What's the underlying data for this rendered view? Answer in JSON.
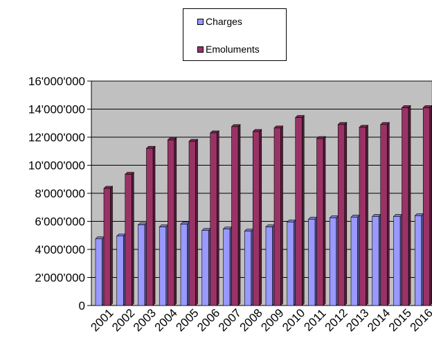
{
  "chart_data": {
    "type": "bar",
    "categories": [
      "2001",
      "2002",
      "2003",
      "2004",
      "2005",
      "2006",
      "2007",
      "2008",
      "2009",
      "2010",
      "2011",
      "2012",
      "2013",
      "2014",
      "2015",
      "2016"
    ],
    "series": [
      {
        "name": "Charges",
        "color": "#9999ff",
        "values": [
          4750000,
          4950000,
          5750000,
          5600000,
          5800000,
          5350000,
          5450000,
          5300000,
          5600000,
          5950000,
          6150000,
          6250000,
          6300000,
          6350000,
          6350000,
          6400000
        ]
      },
      {
        "name": "Emoluments",
        "color": "#993366",
        "values": [
          8350000,
          9350000,
          11200000,
          11800000,
          11700000,
          12300000,
          12750000,
          12400000,
          12650000,
          13400000,
          11900000,
          12900000,
          12700000,
          12900000,
          14100000,
          14100000
        ]
      }
    ],
    "ylim": [
      0,
      16000000
    ],
    "yticks": [
      0,
      2000000,
      4000000,
      6000000,
      8000000,
      10000000,
      12000000,
      14000000,
      16000000
    ],
    "ytick_labels": [
      "0",
      "2'000'000",
      "4'000'000",
      "6'000'000",
      "8'000'000",
      "10'000'000",
      "12'000'000",
      "14'000'000",
      "16'000'000"
    ],
    "plot_background": "#c0c0c0",
    "grid": true,
    "legend_position": "top-center",
    "title": "",
    "xlabel": "",
    "ylabel": ""
  }
}
